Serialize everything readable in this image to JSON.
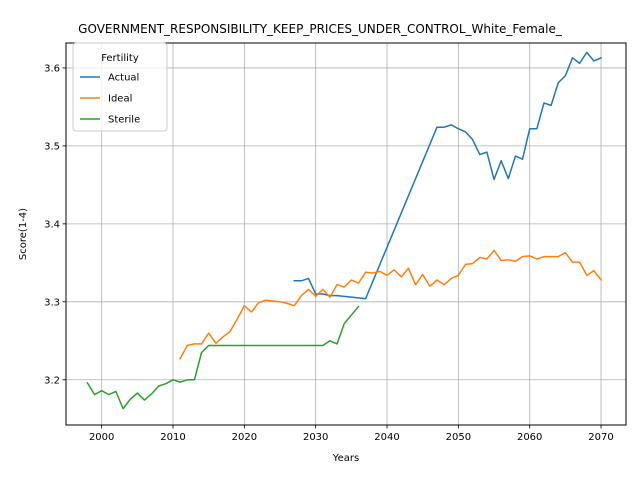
{
  "chart_data": {
    "type": "line",
    "title": "GOVERNMENT_RESPONSIBILITY_KEEP_PRICES_UNDER_CONTROL_White_Female_",
    "xlabel": "Years",
    "ylabel": "Score(1-4)",
    "xlim": [
      1995,
      2073.5
    ],
    "ylim": [
      3.142,
      3.632
    ],
    "xticks": [
      2000,
      2010,
      2020,
      2030,
      2040,
      2050,
      2060,
      2070
    ],
    "yticks": [
      3.2,
      3.3,
      3.4,
      3.5,
      3.6
    ],
    "xtick_labels": [
      "2000",
      "2010",
      "2020",
      "2030",
      "2040",
      "2050",
      "2060",
      "2070"
    ],
    "ytick_labels": [
      "3.2",
      "3.3",
      "3.4",
      "3.5",
      "3.6"
    ],
    "grid": true,
    "legend": {
      "title": "Fertility",
      "placement": "upper-left"
    },
    "series": [
      {
        "name": "Actual",
        "color": "#1f77b4",
        "points": [
          [
            2027,
            3.327
          ],
          [
            2028,
            3.327
          ],
          [
            2029,
            3.33
          ],
          [
            2030,
            3.31
          ],
          [
            2031,
            3.31
          ],
          [
            2032,
            3.308
          ],
          [
            2033,
            3.308
          ],
          [
            2034,
            3.307
          ],
          [
            2035,
            3.306
          ],
          [
            2036,
            3.305
          ],
          [
            2037,
            3.304
          ],
          [
            2047,
            3.524
          ],
          [
            2048,
            3.524
          ],
          [
            2049,
            3.527
          ],
          [
            2050,
            3.522
          ],
          [
            2051,
            3.518
          ],
          [
            2052,
            3.508
          ],
          [
            2053,
            3.489
          ],
          [
            2054,
            3.492
          ],
          [
            2055,
            3.457
          ],
          [
            2056,
            3.481
          ],
          [
            2057,
            3.458
          ],
          [
            2058,
            3.487
          ],
          [
            2059,
            3.483
          ],
          [
            2060,
            3.522
          ],
          [
            2061,
            3.522
          ],
          [
            2062,
            3.555
          ],
          [
            2063,
            3.552
          ],
          [
            2064,
            3.581
          ],
          [
            2065,
            3.59
          ],
          [
            2066,
            3.613
          ],
          [
            2067,
            3.606
          ],
          [
            2068,
            3.62
          ],
          [
            2069,
            3.609
          ],
          [
            2070,
            3.613
          ]
        ]
      },
      {
        "name": "Ideal",
        "color": "#ff7f0e",
        "points": [
          [
            2011,
            3.227
          ],
          [
            2012,
            3.244
          ],
          [
            2013,
            3.246
          ],
          [
            2014,
            3.246
          ],
          [
            2015,
            3.26
          ],
          [
            2016,
            3.247
          ],
          [
            2017,
            3.255
          ],
          [
            2018,
            3.262
          ],
          [
            2019,
            3.278
          ],
          [
            2020,
            3.295
          ],
          [
            2021,
            3.287
          ],
          [
            2022,
            3.299
          ],
          [
            2023,
            3.302
          ],
          [
            2024,
            3.301
          ],
          [
            2025,
            3.3
          ],
          [
            2026,
            3.298
          ],
          [
            2027,
            3.295
          ],
          [
            2028,
            3.308
          ],
          [
            2029,
            3.316
          ],
          [
            2030,
            3.307
          ],
          [
            2031,
            3.316
          ],
          [
            2032,
            3.306
          ],
          [
            2033,
            3.322
          ],
          [
            2034,
            3.319
          ],
          [
            2035,
            3.328
          ],
          [
            2036,
            3.324
          ],
          [
            2037,
            3.338
          ],
          [
            2038,
            3.337
          ],
          [
            2039,
            3.339
          ],
          [
            2040,
            3.334
          ],
          [
            2041,
            3.341
          ],
          [
            2042,
            3.332
          ],
          [
            2043,
            3.343
          ],
          [
            2044,
            3.322
          ],
          [
            2045,
            3.335
          ],
          [
            2046,
            3.32
          ],
          [
            2047,
            3.328
          ],
          [
            2048,
            3.322
          ],
          [
            2049,
            3.33
          ],
          [
            2050,
            3.334
          ],
          [
            2051,
            3.348
          ],
          [
            2052,
            3.349
          ],
          [
            2053,
            3.357
          ],
          [
            2054,
            3.355
          ],
          [
            2055,
            3.366
          ],
          [
            2056,
            3.353
          ],
          [
            2057,
            3.354
          ],
          [
            2058,
            3.352
          ],
          [
            2059,
            3.358
          ],
          [
            2060,
            3.359
          ],
          [
            2061,
            3.355
          ],
          [
            2062,
            3.358
          ],
          [
            2063,
            3.358
          ],
          [
            2064,
            3.358
          ],
          [
            2065,
            3.363
          ],
          [
            2066,
            3.351
          ],
          [
            2067,
            3.351
          ],
          [
            2068,
            3.334
          ],
          [
            2069,
            3.34
          ],
          [
            2070,
            3.328
          ]
        ]
      },
      {
        "name": "Sterile",
        "color": "#2ca02c",
        "points": [
          [
            1998,
            3.196
          ],
          [
            1999,
            3.181
          ],
          [
            2000,
            3.186
          ],
          [
            2001,
            3.181
          ],
          [
            2002,
            3.185
          ],
          [
            2003,
            3.163
          ],
          [
            2004,
            3.175
          ],
          [
            2005,
            3.183
          ],
          [
            2006,
            3.174
          ],
          [
            2007,
            3.182
          ],
          [
            2008,
            3.192
          ],
          [
            2009,
            3.195
          ],
          [
            2010,
            3.2
          ],
          [
            2011,
            3.197
          ],
          [
            2012,
            3.2
          ],
          [
            2013,
            3.2
          ],
          [
            2014,
            3.235
          ],
          [
            2015,
            3.244
          ],
          [
            2016,
            3.244
          ],
          [
            2017,
            3.244
          ],
          [
            2018,
            3.244
          ],
          [
            2019,
            3.244
          ],
          [
            2020,
            3.244
          ],
          [
            2021,
            3.244
          ],
          [
            2022,
            3.244
          ],
          [
            2023,
            3.244
          ],
          [
            2024,
            3.244
          ],
          [
            2025,
            3.244
          ],
          [
            2026,
            3.244
          ],
          [
            2027,
            3.244
          ],
          [
            2028,
            3.244
          ],
          [
            2029,
            3.244
          ],
          [
            2030,
            3.244
          ],
          [
            2031,
            3.244
          ],
          [
            2032,
            3.25
          ],
          [
            2033,
            3.246
          ],
          [
            2034,
            3.272
          ],
          [
            2035,
            3.283
          ],
          [
            2036,
            3.294
          ]
        ]
      }
    ]
  }
}
